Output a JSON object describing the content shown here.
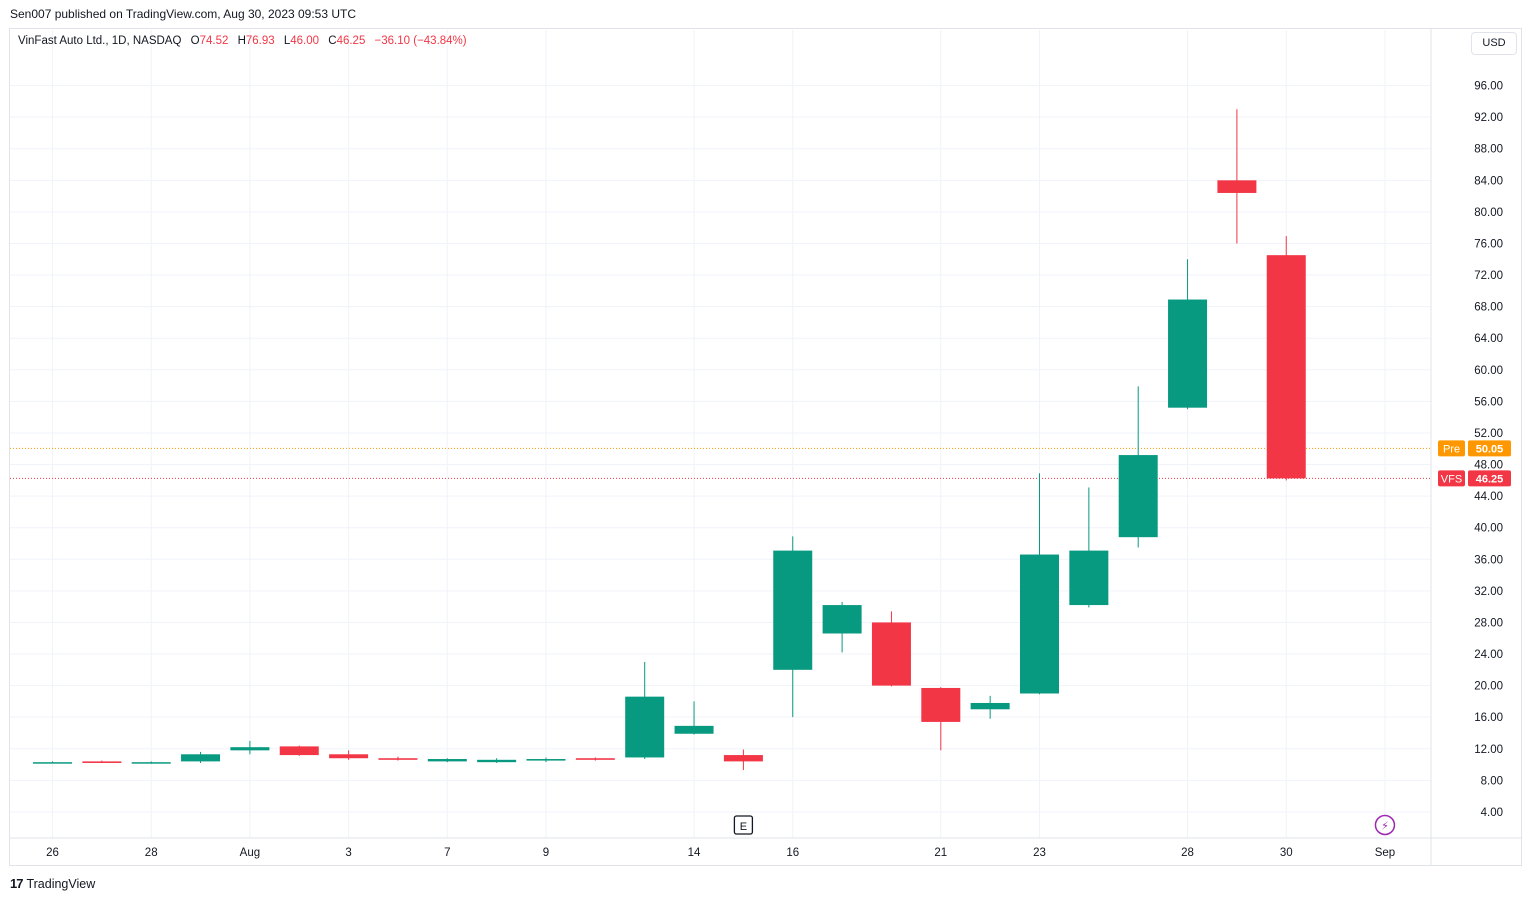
{
  "header": {
    "publisher_line": "Sen007 published on TradingView.com, Aug 30, 2023 09:53 UTC"
  },
  "legend": {
    "symbol": "VinFast Auto Ltd., 1D, NASDAQ",
    "o_label": "O",
    "o_value": "74.52",
    "h_label": "H",
    "h_value": "76.93",
    "l_label": "L",
    "l_value": "46.00",
    "c_label": "C",
    "c_value": "46.25",
    "change": "−36.10 (−43.84%)"
  },
  "currency_button": "USD",
  "footer": {
    "brand": "TradingView",
    "logo_glyph": "17"
  },
  "colors": {
    "up": "#089981",
    "down": "#f23645",
    "pre": "#ff9800",
    "grid": "#f0f3fa"
  },
  "chart_data": {
    "type": "candlestick",
    "symbol": "VFS",
    "y_ticks": [
      "96.00",
      "92.00",
      "88.00",
      "84.00",
      "80.00",
      "76.00",
      "72.00",
      "68.00",
      "64.00",
      "60.00",
      "56.00",
      "52.00",
      "48.00",
      "44.00",
      "40.00",
      "36.00",
      "32.00",
      "28.00",
      "24.00",
      "20.00",
      "16.00",
      "12.00",
      "8.00",
      "4.00"
    ],
    "ylim": [
      0,
      100
    ],
    "x_ticks": [
      {
        "label": "26",
        "bar": 0
      },
      {
        "label": "28",
        "bar": 2
      },
      {
        "label": "Aug",
        "bar": 4
      },
      {
        "label": "3",
        "bar": 6
      },
      {
        "label": "7",
        "bar": 8
      },
      {
        "label": "9",
        "bar": 10
      },
      {
        "label": "14",
        "bar": 13
      },
      {
        "label": "16",
        "bar": 15
      },
      {
        "label": "21",
        "bar": 18
      },
      {
        "label": "23",
        "bar": 20
      },
      {
        "label": "28",
        "bar": 23
      },
      {
        "label": "30",
        "bar": 25
      },
      {
        "label": "Sep",
        "bar": 27
      }
    ],
    "candles": [
      {
        "o": 10.3,
        "h": 10.4,
        "l": 10.2,
        "c": 10.3
      },
      {
        "o": 10.4,
        "h": 10.5,
        "l": 10.2,
        "c": 10.2
      },
      {
        "o": 10.2,
        "h": 10.4,
        "l": 10.1,
        "c": 10.3
      },
      {
        "o": 10.4,
        "h": 11.6,
        "l": 10.2,
        "c": 11.3
      },
      {
        "o": 11.8,
        "h": 13.0,
        "l": 11.3,
        "c": 12.2
      },
      {
        "o": 12.3,
        "h": 12.4,
        "l": 11.1,
        "c": 11.2
      },
      {
        "o": 11.3,
        "h": 11.8,
        "l": 10.6,
        "c": 10.8
      },
      {
        "o": 10.8,
        "h": 11.0,
        "l": 10.5,
        "c": 10.6
      },
      {
        "o": 10.4,
        "h": 10.8,
        "l": 10.3,
        "c": 10.7
      },
      {
        "o": 10.3,
        "h": 10.8,
        "l": 10.2,
        "c": 10.6
      },
      {
        "o": 10.5,
        "h": 10.9,
        "l": 10.3,
        "c": 10.7
      },
      {
        "o": 10.8,
        "h": 10.9,
        "l": 10.5,
        "c": 10.6
      },
      {
        "o": 10.9,
        "h": 23.0,
        "l": 10.7,
        "c": 18.6
      },
      {
        "o": 13.9,
        "h": 18.0,
        "l": 13.8,
        "c": 14.9
      },
      {
        "o": 11.2,
        "h": 11.9,
        "l": 9.3,
        "c": 10.4
      },
      {
        "o": 22.0,
        "h": 38.9,
        "l": 16.0,
        "c": 37.1
      },
      {
        "o": 26.6,
        "h": 30.6,
        "l": 24.2,
        "c": 30.2
      },
      {
        "o": 28.0,
        "h": 29.4,
        "l": 19.9,
        "c": 20.0
      },
      {
        "o": 19.7,
        "h": 19.8,
        "l": 11.8,
        "c": 15.4
      },
      {
        "o": 17.0,
        "h": 18.7,
        "l": 15.8,
        "c": 17.8
      },
      {
        "o": 19.0,
        "h": 46.9,
        "l": 18.9,
        "c": 36.6
      },
      {
        "o": 30.2,
        "h": 45.1,
        "l": 29.9,
        "c": 37.1
      },
      {
        "o": 38.8,
        "h": 57.9,
        "l": 37.5,
        "c": 49.2
      },
      {
        "o": 55.2,
        "h": 74.0,
        "l": 55.0,
        "c": 68.9
      },
      {
        "o": 84.0,
        "h": 93.0,
        "l": 76.0,
        "c": 82.4
      },
      {
        "o": 74.52,
        "h": 76.93,
        "l": 46.0,
        "c": 46.25
      }
    ],
    "price_lines": [
      {
        "label": "Pre",
        "value": 50.05,
        "value_text": "50.05",
        "color": "#ff9800"
      },
      {
        "label": "VFS",
        "value": 46.25,
        "value_text": "46.25",
        "color": "#f23645"
      }
    ],
    "events": [
      {
        "type": "earnings",
        "glyph": "E",
        "bar": 14
      },
      {
        "type": "split-dividend",
        "glyph": "⚡",
        "bar": 27
      }
    ]
  }
}
